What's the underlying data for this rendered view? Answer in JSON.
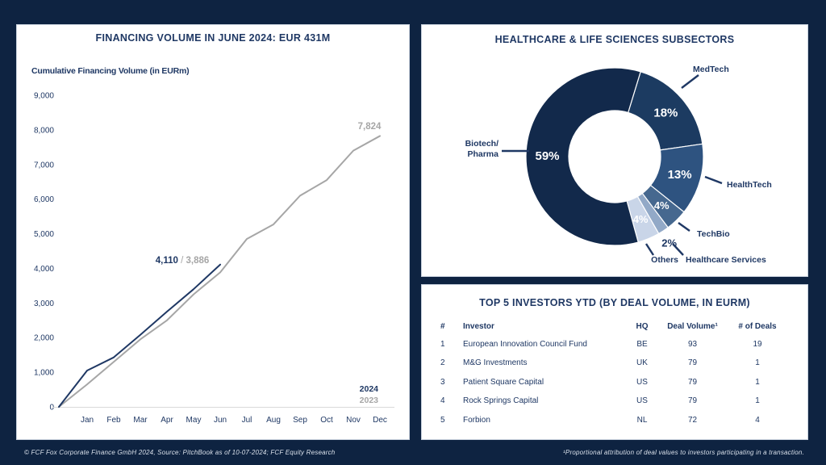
{
  "page": {
    "background": "#0E2341",
    "navy": "#1F3864",
    "gray": "#A6A6A6"
  },
  "footer": {
    "left": "© FCF Fox Corporate Finance GmbH 2024, Source: PitchBook as of 10-07-2024;  FCF Equity Research",
    "right": "¹Proportional attribution of deal values to investors participating in a transaction."
  },
  "financing_panel": {
    "title": "FINANCING VOLUME IN JUNE 2024: EUR 431M",
    "subtitle": "Cumulative Financing Volume (in EURm)",
    "annotation_current": "4,110",
    "annotation_separator": " / ",
    "annotation_prior": "3,886",
    "endpoint_label": "7,824",
    "legend": [
      {
        "label": "2024",
        "color": "#1F3864"
      },
      {
        "label": "2023",
        "color": "#A6A6A6"
      }
    ]
  },
  "subsectors_panel": {
    "title": "HEALTHCARE & LIFE SCIENCES SUBSECTORS"
  },
  "investors_panel": {
    "title": "TOP 5 INVESTORS YTD (BY DEAL VOLUME, IN EURM)",
    "columns": [
      "#",
      "Investor",
      "HQ",
      "Deal Volume¹",
      "# of Deals"
    ],
    "rows": [
      [
        "1",
        "European Innovation Council Fund",
        "BE",
        "93",
        "19"
      ],
      [
        "2",
        "M&G Investments",
        "UK",
        "79",
        "1"
      ],
      [
        "3",
        "Patient Square Capital",
        "US",
        "79",
        "1"
      ],
      [
        "4",
        "Rock Springs Capital",
        "US",
        "79",
        "1"
      ],
      [
        "5",
        "Forbion",
        "NL",
        "72",
        "4"
      ]
    ]
  },
  "chart_data": [
    {
      "type": "line",
      "title": "FINANCING VOLUME IN JUNE 2024: EUR 431M",
      "ylabel": "Cumulative Financing Volume (in EURm)",
      "x_categories": [
        "Jan",
        "Feb",
        "Mar",
        "Apr",
        "May",
        "Jun",
        "Jul",
        "Aug",
        "Sep",
        "Oct",
        "Nov",
        "Dec"
      ],
      "ylim": [
        0,
        9000
      ],
      "ytick_step": 1000,
      "ytick_labels": [
        "0",
        "1,000",
        "2,000",
        "3,000",
        "4,000",
        "5,000",
        "6,000",
        "7,000",
        "8,000",
        "9,000"
      ],
      "grid": false,
      "legend_position": "bottom-right",
      "series": [
        {
          "name": "2023",
          "color": "#A6A6A6",
          "values": [
            0,
            650,
            1300,
            1950,
            2500,
            3250,
            3886,
            4850,
            5270,
            6100,
            6550,
            7400,
            7824
          ],
          "end_label": "7,824"
        },
        {
          "name": "2024",
          "color": "#1F3864",
          "values": [
            0,
            1050,
            1430,
            2080,
            2750,
            3400,
            4110
          ],
          "end_label": "4,110"
        }
      ],
      "annotation": "4,110 / 3,886"
    },
    {
      "type": "pie",
      "donut": true,
      "title": "HEALTHCARE & LIFE SCIENCES SUBSECTORS",
      "start_angle_deg_cw_from_top": 17,
      "slices": [
        {
          "label": "MedTech",
          "pct": 18,
          "pct_label": "18%",
          "color": "#1C3B61"
        },
        {
          "label": "HealthTech",
          "pct": 13,
          "pct_label": "13%",
          "color": "#2E5380"
        },
        {
          "label": "TechBio",
          "pct": 4,
          "pct_label": "4%",
          "color": "#46688F"
        },
        {
          "label": "Healthcare Services",
          "pct": 2,
          "pct_label": "2%",
          "color": "#92A9C7"
        },
        {
          "label": "Others",
          "pct": 4,
          "pct_label": "4%",
          "color": "#C9D5E8"
        },
        {
          "label": "Biotech/Pharma",
          "pct": 59,
          "pct_label": "59%",
          "color": "#12294B"
        }
      ]
    },
    {
      "type": "table",
      "title": "TOP 5 INVESTORS YTD (BY DEAL VOLUME, IN EURM)",
      "columns": [
        "#",
        "Investor",
        "HQ",
        "Deal Volume¹",
        "# of Deals"
      ],
      "rows": [
        [
          "1",
          "European Innovation Council Fund",
          "BE",
          "93",
          "19"
        ],
        [
          "2",
          "M&G Investments",
          "UK",
          "79",
          "1"
        ],
        [
          "3",
          "Patient Square Capital",
          "US",
          "79",
          "1"
        ],
        [
          "4",
          "Rock Springs Capital",
          "US",
          "79",
          "1"
        ],
        [
          "5",
          "Forbion",
          "NL",
          "72",
          "4"
        ]
      ]
    }
  ]
}
